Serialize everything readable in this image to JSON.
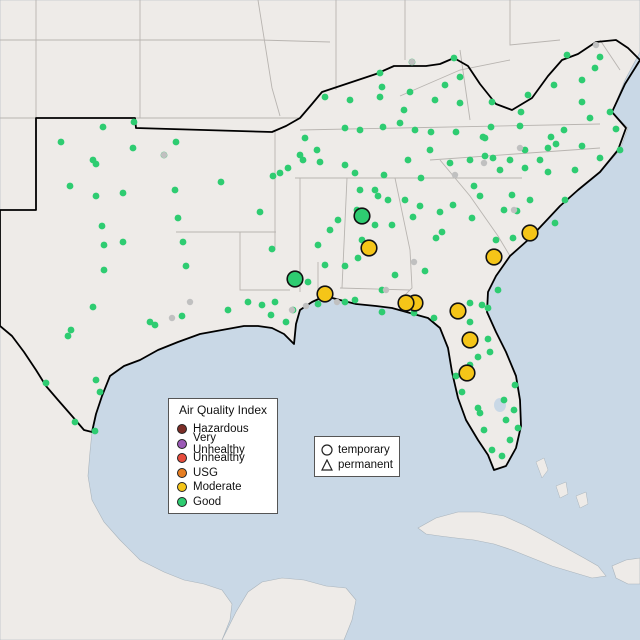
{
  "map": {
    "region": "Southeastern United States",
    "colors": {
      "water": "#c9d8e6",
      "land": "#eeebe8",
      "state_border": "#b8b4b0",
      "region_outline": "#000000",
      "good": "#2ecc71",
      "moderate": "#f5c518",
      "usg": "#e67e22",
      "unhealthy": "#e74c3c",
      "very_unhealthy": "#9b59b6",
      "hazardous": "#7b2d26",
      "no_data": "#c0c0c0"
    }
  },
  "legend": {
    "title": "Air Quality Index",
    "items": [
      {
        "label": "Hazardous",
        "color": "#7b2d26"
      },
      {
        "label": "Very Unhealthy",
        "color": "#9b59b6"
      },
      {
        "label": "Unhealthy",
        "color": "#e74c3c"
      },
      {
        "label": "USG",
        "color": "#e67e22"
      },
      {
        "label": "Moderate",
        "color": "#f5c518"
      },
      {
        "label": "Good",
        "color": "#2ecc71"
      }
    ]
  },
  "type_legend": {
    "temporary": "temporary",
    "permanent": "permanent"
  },
  "temporary_monitors": [
    {
      "category": "Good",
      "icon": "circle"
    },
    {
      "category": "Moderate",
      "icon": "circle"
    },
    {
      "category": "Good",
      "icon": "circle"
    },
    {
      "category": "Moderate",
      "icon": "circle"
    },
    {
      "category": "Moderate",
      "icon": "circle"
    },
    {
      "category": "Moderate",
      "icon": "circle"
    },
    {
      "category": "Moderate",
      "icon": "circle"
    },
    {
      "category": "Moderate",
      "icon": "circle"
    },
    {
      "category": "Moderate",
      "icon": "circle"
    },
    {
      "category": "Moderate",
      "icon": "circle"
    },
    {
      "category": "Moderate",
      "icon": "circle"
    }
  ]
}
